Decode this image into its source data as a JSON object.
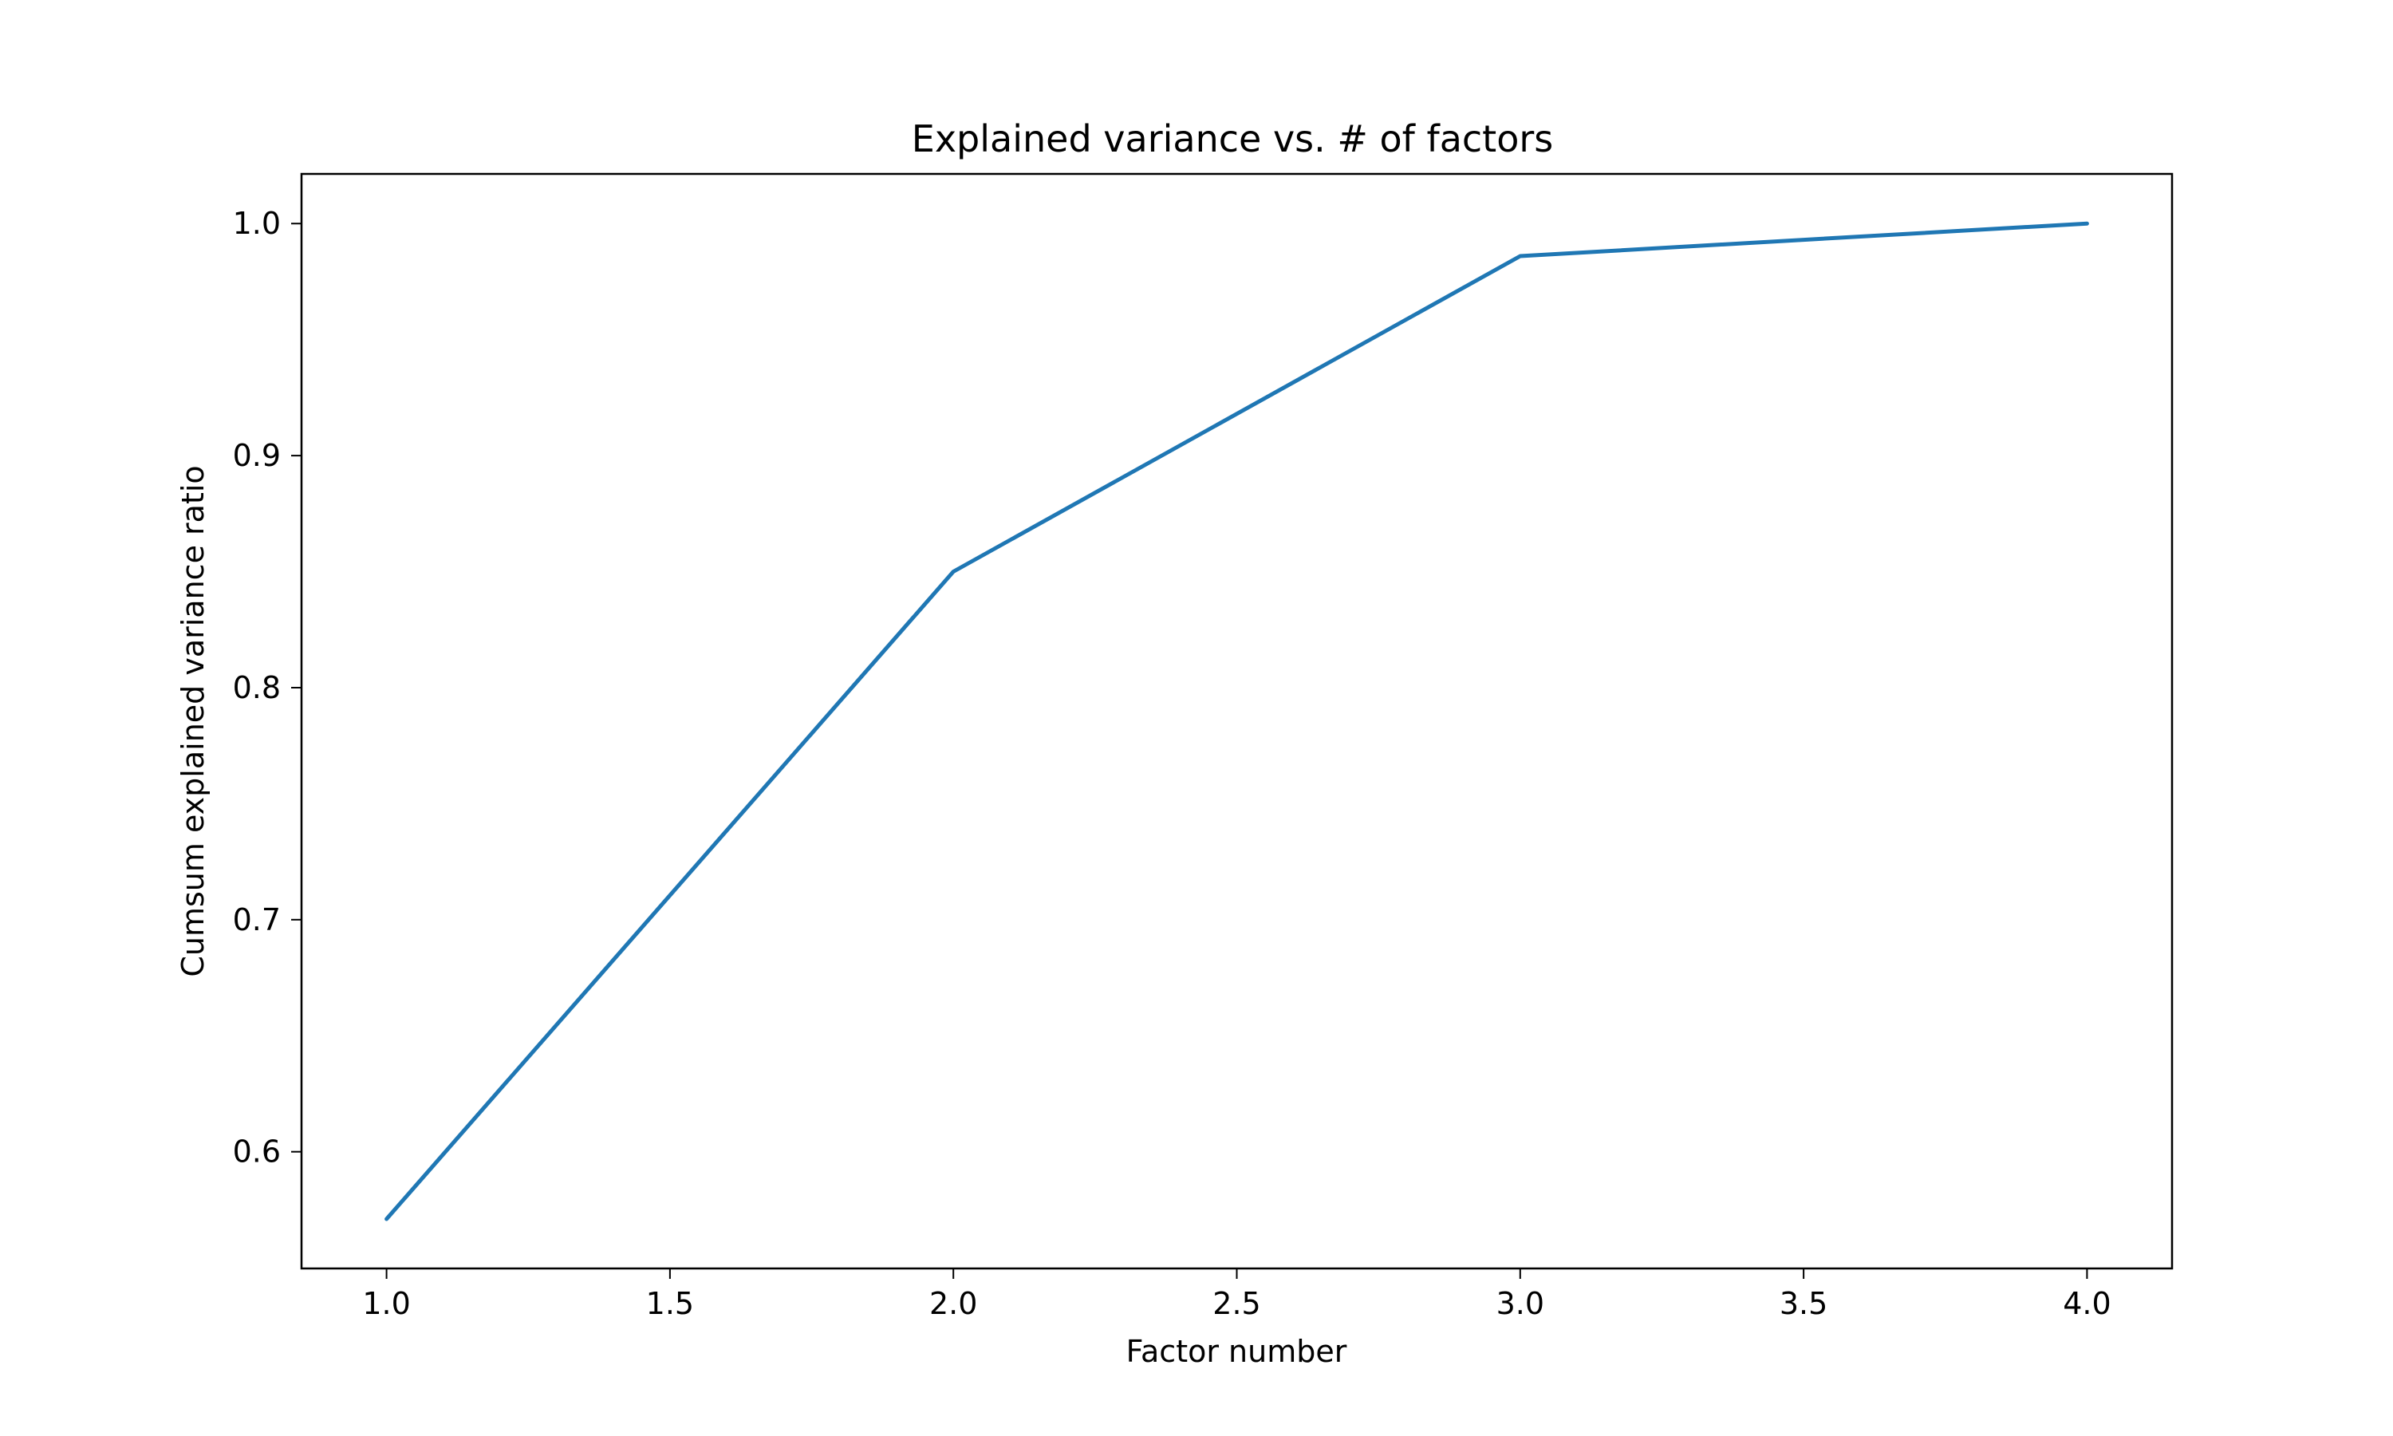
{
  "chart_data": {
    "type": "line",
    "title": "Explained variance vs. # of factors",
    "xlabel": "Factor number",
    "ylabel": "Cumsum explained variance ratio",
    "x": [
      1.0,
      2.0,
      3.0,
      4.0
    ],
    "series": [
      {
        "values": [
          0.571,
          0.85,
          0.986,
          1.0
        ],
        "color": "#1f77b4"
      }
    ],
    "xlim": [
      0.85,
      4.15
    ],
    "ylim": [
      0.5497,
      1.0214
    ],
    "xticks": [
      1.0,
      1.5,
      2.0,
      2.5,
      3.0,
      3.5,
      4.0
    ],
    "xtick_labels": [
      "1.0",
      "1.5",
      "2.0",
      "2.5",
      "3.0",
      "3.5",
      "4.0"
    ],
    "yticks": [
      0.6,
      0.7,
      0.8,
      0.9,
      1.0
    ],
    "ytick_labels": [
      "0.6",
      "0.7",
      "0.8",
      "0.9",
      "1.0"
    ],
    "grid": false,
    "legend": "none"
  }
}
